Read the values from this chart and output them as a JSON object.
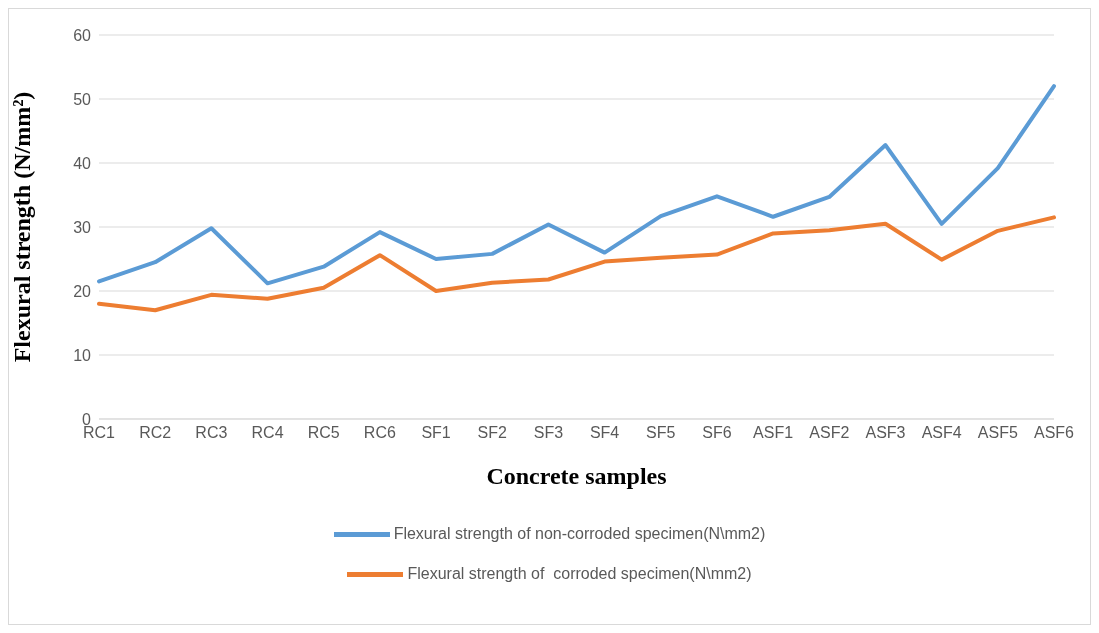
{
  "chart_data": {
    "type": "line",
    "xlabel": "Concrete samples",
    "ylabel": "Flexural strength  (N/mm²)",
    "categories": [
      "RC1",
      "RC2",
      "RC3",
      "RC4",
      "RC5",
      "RC6",
      "SF1",
      "SF2",
      "SF3",
      "SF4",
      "SF5",
      "SF6",
      "ASF1",
      "ASF2",
      "ASF3",
      "ASF4",
      "ASF5",
      "ASF6"
    ],
    "series": [
      {
        "name": "Flexural strength of non-corroded specimen(N\\mm2)",
        "color": "#5b9bd5",
        "values": [
          21.5,
          24.5,
          29.8,
          21.2,
          23.8,
          29.2,
          25,
          25.8,
          30.4,
          26,
          31.7,
          34.8,
          31.6,
          34.7,
          42.8,
          30.5,
          39.2,
          52
        ]
      },
      {
        "name": "Flexural strength of  corroded specimen(N\\mm2)",
        "color": "#ed7d31",
        "values": [
          18,
          17,
          19.4,
          18.8,
          20.5,
          25.6,
          20,
          21.3,
          21.8,
          24.6,
          25.2,
          25.7,
          29,
          29.5,
          30.5,
          24.9,
          29.4,
          31.5
        ]
      }
    ],
    "ylim": [
      0,
      60
    ],
    "yticks": [
      0,
      10,
      20,
      30,
      40,
      50,
      60
    ],
    "grid": "y",
    "legend": "bottom",
    "marker": "none",
    "line_style": "solid"
  }
}
